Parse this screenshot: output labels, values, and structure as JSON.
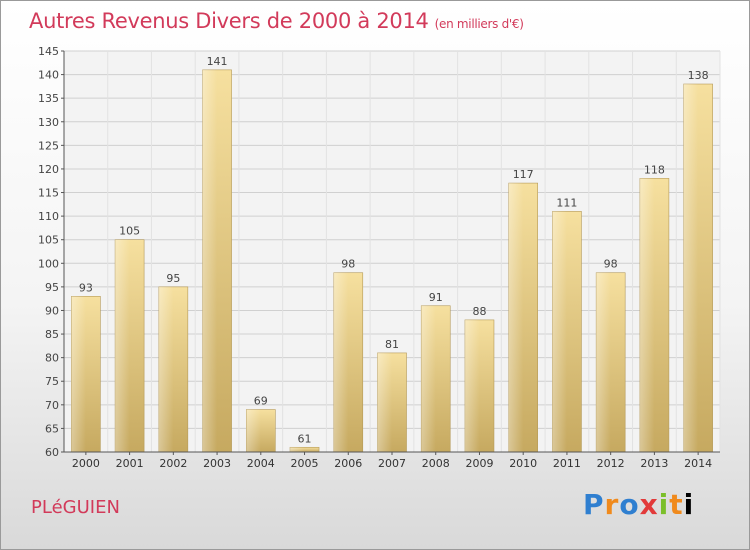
{
  "header": {
    "title": "Autres Revenus Divers de 2000 à 2014",
    "subtitle": "(en milliers d'€)"
  },
  "footer": {
    "commune": "PLéGUIEN",
    "logo": [
      "P",
      "r",
      "o",
      "x",
      "i",
      "t",
      "i"
    ]
  },
  "colors": {
    "title": "#d23a5a",
    "bar_light": "#f4dc9a",
    "bar_dark": "#c8ab62"
  },
  "chart_data": {
    "type": "bar",
    "categories": [
      "2000",
      "2001",
      "2002",
      "2003",
      "2004",
      "2005",
      "2006",
      "2007",
      "2008",
      "2009",
      "2010",
      "2011",
      "2012",
      "2013",
      "2014"
    ],
    "values": [
      93,
      105,
      95,
      141,
      69,
      61,
      98,
      81,
      91,
      88,
      117,
      111,
      98,
      118,
      138
    ],
    "title": "Autres Revenus Divers de 2000 à 2014",
    "xlabel": "",
    "ylabel": "",
    "ylim": [
      60,
      145
    ],
    "yticks": [
      60,
      65,
      70,
      75,
      80,
      85,
      90,
      95,
      100,
      105,
      110,
      115,
      120,
      125,
      130,
      135,
      140,
      145
    ],
    "grid": true,
    "data_labels": true
  }
}
